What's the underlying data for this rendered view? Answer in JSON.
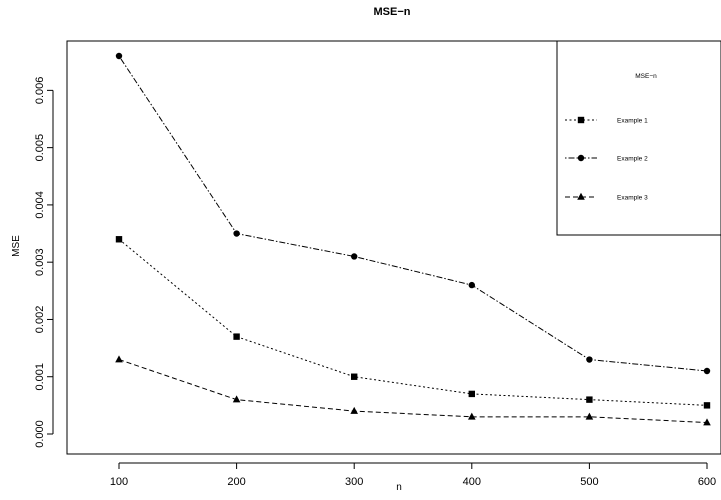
{
  "chart_data": {
    "type": "line",
    "title": "MSE−n",
    "xlabel": "n",
    "ylabel": "MSE",
    "x": [
      100,
      200,
      300,
      400,
      500,
      600
    ],
    "xlim": [
      100,
      600
    ],
    "ylim": [
      0,
      0.0066
    ],
    "x_ticks": [
      "100",
      "200",
      "300",
      "400",
      "500",
      "600"
    ],
    "y_ticks": [
      "0.000",
      "0.001",
      "0.002",
      "0.003",
      "0.004",
      "0.005",
      "0.006"
    ],
    "grid": false,
    "legend": {
      "title": "MSE−n",
      "placement": "top-right"
    },
    "series": [
      {
        "name": "Example 1",
        "values": [
          0.0034,
          0.0017,
          0.001,
          0.0007,
          0.0006,
          0.0005
        ],
        "marker": "square",
        "dash": "dotted"
      },
      {
        "name": "Example 2",
        "values": [
          0.0066,
          0.0035,
          0.0031,
          0.0026,
          0.0013,
          0.0011
        ],
        "marker": "circle",
        "dash": "dotdash"
      },
      {
        "name": "Example 3",
        "values": [
          0.0013,
          0.0006,
          0.0004,
          0.0003,
          0.0003,
          0.0002
        ],
        "marker": "triangle",
        "dash": "dashed"
      }
    ],
    "color": "#000000"
  }
}
